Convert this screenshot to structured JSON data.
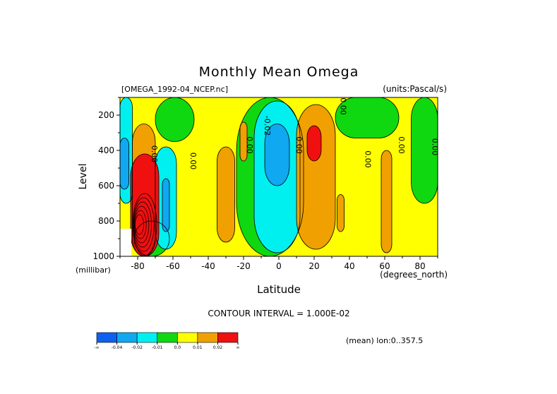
{
  "chart_data": {
    "type": "heatmap",
    "title": "Monthly Mean Omega",
    "dataset_label": "[OMEGA_1992-04_NCEP.nc]",
    "units_label": "(units:Pascal/s)",
    "xlabel": "Latitude",
    "x_units": "(degrees_north)",
    "ylabel": "Level",
    "y_units": "(millibar)",
    "xlim": [
      -90,
      90
    ],
    "ylim": [
      1000,
      100
    ],
    "x_ticks": [
      -80,
      -60,
      -40,
      -20,
      0,
      20,
      40,
      60,
      80
    ],
    "x_tick_labels": [
      "-80",
      "-60",
      "-40",
      "-20",
      "0",
      "20",
      "40",
      "60",
      "80"
    ],
    "y_ticks": [
      200,
      400,
      600,
      800,
      1000
    ],
    "y_tick_labels": [
      "200",
      "400",
      "600",
      "800",
      "1000"
    ],
    "contour_interval_label": "CONTOUR INTERVAL = 1.000E-02",
    "mean_label": "(mean) lon:0..357.5",
    "contour_labels": [
      {
        "text": "0.00",
        "lat": -72,
        "p": 420
      },
      {
        "text": "0.00",
        "lat": -50,
        "p": 460
      },
      {
        "text": "0.00",
        "lat": -18,
        "p": 370
      },
      {
        "text": "-0.02",
        "lat": -8,
        "p": 260
      },
      {
        "text": "0.00",
        "lat": 10,
        "p": 370
      },
      {
        "text": "0.00",
        "lat": 35,
        "p": 150
      },
      {
        "text": "0.00",
        "lat": 49,
        "p": 450
      },
      {
        "text": "0.00",
        "lat": 68,
        "p": 370
      },
      {
        "text": "0.00",
        "lat": 87,
        "p": 380
      }
    ],
    "colorbar": {
      "colors": [
        "#1060f0",
        "#10a8f0",
        "#00f0f0",
        "#10d810",
        "#ffff00",
        "#f0a000",
        "#f01010"
      ],
      "labels": [
        "-∞",
        "-0.04",
        "-0.02",
        "-0.01",
        "0.0",
        "0.01",
        "0.02",
        "∞"
      ]
    },
    "regions": [
      {
        "level": "0.0",
        "color": "#ffff00",
        "lat_range": [
          -90,
          90
        ],
        "p_range": [
          100,
          1000
        ]
      },
      {
        "level": "-0.01",
        "color": "#10d810",
        "lat_range": [
          -70,
          -48
        ],
        "p_range": [
          100,
          350
        ]
      },
      {
        "level": "-0.01",
        "color": "#10d810",
        "lat_range": [
          -82,
          -62
        ],
        "p_range": [
          800,
          1000
        ]
      },
      {
        "level": "-0.01",
        "color": "#10d810",
        "lat_range": [
          -24,
          14
        ],
        "p_range": [
          100,
          1000
        ]
      },
      {
        "level": "-0.01",
        "color": "#10d810",
        "lat_range": [
          32,
          68
        ],
        "p_range": [
          100,
          330
        ]
      },
      {
        "level": "-0.01",
        "color": "#10d810",
        "lat_range": [
          75,
          90
        ],
        "p_range": [
          100,
          700
        ]
      },
      {
        "level": "-0.02",
        "color": "#00f0f0",
        "lat_range": [
          -14,
          12
        ],
        "p_range": [
          120,
          980
        ]
      },
      {
        "level": "-0.02",
        "color": "#00f0f0",
        "lat_range": [
          -70,
          -58
        ],
        "p_range": [
          380,
          960
        ]
      },
      {
        "level": "-0.02",
        "color": "#00f0f0",
        "lat_range": [
          -90,
          -83
        ],
        "p_range": [
          100,
          700
        ]
      },
      {
        "level": "-0.04",
        "color": "#10a8f0",
        "lat_range": [
          -8,
          6
        ],
        "p_range": [
          250,
          600
        ]
      },
      {
        "level": "-0.04",
        "color": "#10a8f0",
        "lat_range": [
          -66,
          -62
        ],
        "p_range": [
          560,
          860
        ]
      },
      {
        "level": "-0.04",
        "color": "#10a8f0",
        "lat_range": [
          -90,
          -85
        ],
        "p_range": [
          330,
          620
        ]
      },
      {
        "level": "0.01",
        "color": "#f0a000",
        "lat_range": [
          -35,
          -25
        ],
        "p_range": [
          380,
          920
        ]
      },
      {
        "level": "0.01",
        "color": "#f0a000",
        "lat_range": [
          -22,
          -18
        ],
        "p_range": [
          240,
          460
        ]
      },
      {
        "level": "0.01",
        "color": "#f0a000",
        "lat_range": [
          10,
          32
        ],
        "p_range": [
          140,
          960
        ]
      },
      {
        "level": "0.01",
        "color": "#f0a000",
        "lat_range": [
          -83,
          -70
        ],
        "p_range": [
          250,
          1000
        ]
      },
      {
        "level": "0.01",
        "color": "#f0a000",
        "lat_range": [
          58,
          64
        ],
        "p_range": [
          400,
          980
        ]
      },
      {
        "level": "0.01",
        "color": "#f0a000",
        "lat_range": [
          33,
          37
        ],
        "p_range": [
          650,
          860
        ]
      },
      {
        "level": "0.02",
        "color": "#f01010",
        "lat_range": [
          16,
          24
        ],
        "p_range": [
          260,
          460
        ]
      },
      {
        "level": "0.02",
        "color": "#f01010",
        "lat_range": [
          -84,
          -68
        ],
        "p_range": [
          420,
          1000
        ]
      }
    ]
  }
}
